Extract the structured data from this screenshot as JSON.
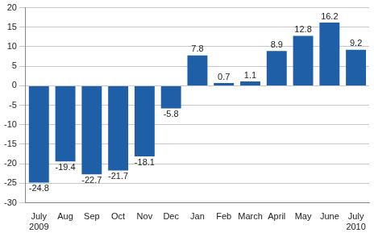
{
  "chart_data": {
    "type": "bar",
    "categories": [
      "July 2009",
      "Aug",
      "Sep",
      "Oct",
      "Nov",
      "Dec",
      "Jan",
      "Feb",
      "March",
      "April",
      "May",
      "June",
      "July 2010"
    ],
    "values": [
      -24.8,
      -19.4,
      -22.7,
      -21.7,
      -18.1,
      -5.8,
      7.8,
      0.7,
      1.1,
      8.9,
      12.8,
      16.2,
      9.2
    ],
    "color": "#1f5fa8",
    "ylim": [
      -30,
      20
    ],
    "yticks": [
      -30,
      -25,
      -20,
      -15,
      -10,
      -5,
      0,
      5,
      10,
      15,
      20
    ],
    "grid": true,
    "data_labels": true
  }
}
